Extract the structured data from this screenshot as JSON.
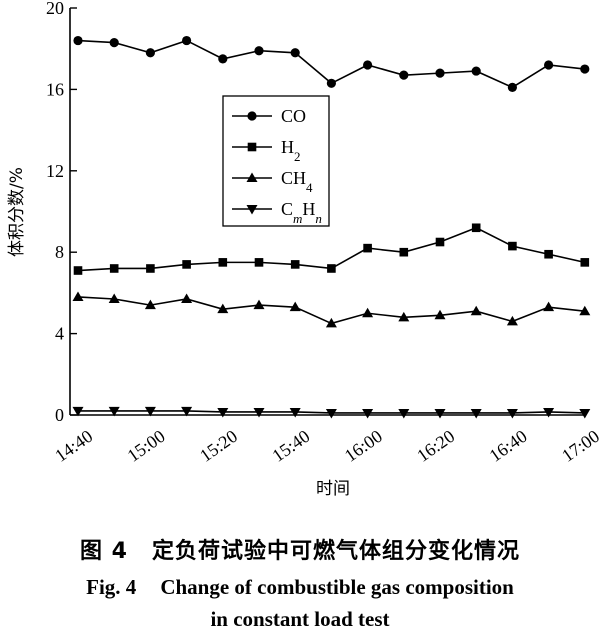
{
  "chart_data": {
    "type": "line",
    "title": "",
    "xlabel": "时间",
    "ylabel": "体积分数/%",
    "x": [
      "14:40",
      "14:50",
      "15:00",
      "15:10",
      "15:20",
      "15:30",
      "15:40",
      "15:50",
      "16:00",
      "16:10",
      "16:20",
      "16:30",
      "16:40",
      "16:50",
      "17:00"
    ],
    "xticks": [
      "14:40",
      "15:00",
      "15:20",
      "15:40",
      "16:00",
      "16:20",
      "16:40",
      "17:00"
    ],
    "ylim": [
      0,
      20
    ],
    "yticks": [
      0,
      4,
      8,
      12,
      16,
      20
    ],
    "grid": false,
    "legend_position": "center-left",
    "series": [
      {
        "name": "CO",
        "marker": "circle",
        "values": [
          18.4,
          18.3,
          17.8,
          18.4,
          17.5,
          17.9,
          17.8,
          16.3,
          17.2,
          16.7,
          16.8,
          16.9,
          16.1,
          17.2,
          17.0
        ]
      },
      {
        "name": "H2",
        "marker": "square",
        "values": [
          7.1,
          7.2,
          7.2,
          7.4,
          7.5,
          7.5,
          7.4,
          7.2,
          8.2,
          8.0,
          8.5,
          9.2,
          8.3,
          7.9,
          7.5
        ]
      },
      {
        "name": "CH4",
        "marker": "triangle-up",
        "values": [
          5.8,
          5.7,
          5.4,
          5.7,
          5.2,
          5.4,
          5.3,
          4.5,
          5.0,
          4.8,
          4.9,
          5.1,
          4.6,
          5.3,
          5.1
        ]
      },
      {
        "name": "CmHn",
        "marker": "triangle-down",
        "values": [
          0.2,
          0.2,
          0.2,
          0.2,
          0.15,
          0.15,
          0.15,
          0.1,
          0.1,
          0.1,
          0.1,
          0.1,
          0.1,
          0.15,
          0.1
        ]
      }
    ]
  },
  "caption": {
    "cn_fig": "图 4",
    "cn_text": "定负荷试验中可燃气体组分变化情况",
    "en_line1_fig": "Fig. 4",
    "en_line1_text": "Change of combustible gas composition",
    "en_line2": "in constant load test"
  }
}
